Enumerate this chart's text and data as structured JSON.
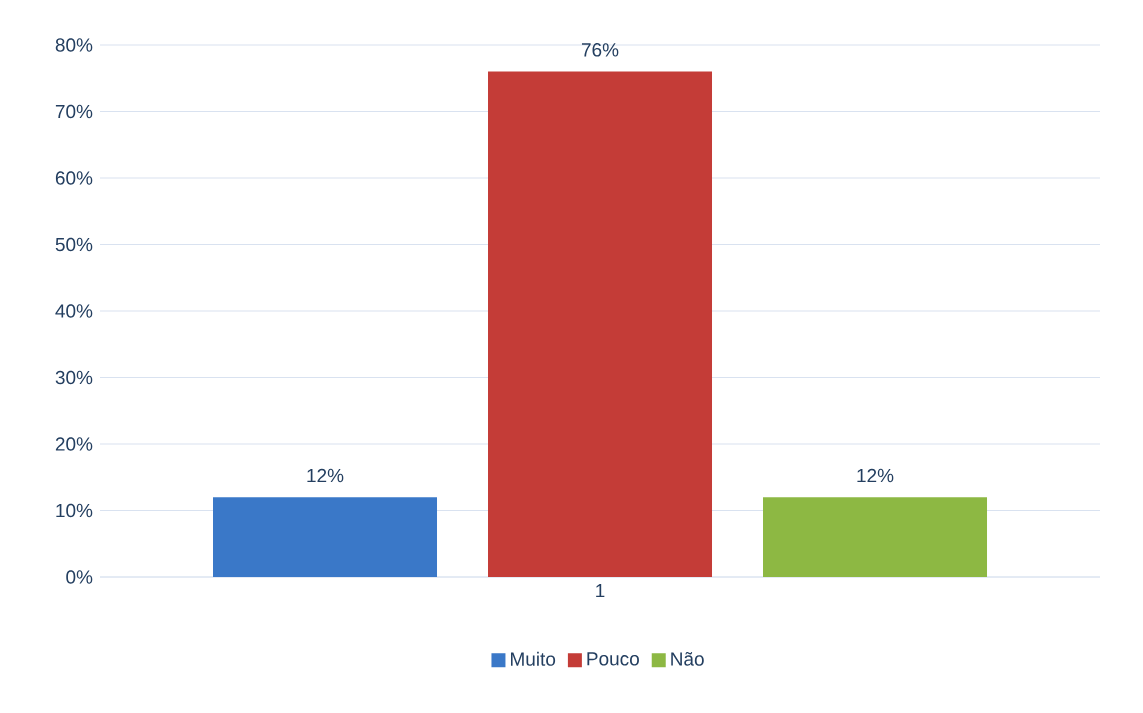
{
  "chart_data": {
    "type": "bar",
    "categories": [
      "1"
    ],
    "series": [
      {
        "name": "Muito",
        "color": "#3a78c8",
        "values": [
          12
        ],
        "value_labels": [
          "12%"
        ]
      },
      {
        "name": "Pouco",
        "color": "#c43c37",
        "values": [
          76
        ],
        "value_labels": [
          "76%"
        ]
      },
      {
        "name": "Não",
        "color": "#8db843",
        "values": [
          12
        ],
        "value_labels": [
          "12%"
        ]
      }
    ],
    "ylim": [
      0,
      80
    ],
    "yticks": [
      {
        "value": 0,
        "label": "0%"
      },
      {
        "value": 10,
        "label": "10%"
      },
      {
        "value": 20,
        "label": "20%"
      },
      {
        "value": 30,
        "label": "30%"
      },
      {
        "value": 40,
        "label": "40%"
      },
      {
        "value": 50,
        "label": "50%"
      },
      {
        "value": 60,
        "label": "60%"
      },
      {
        "value": 70,
        "label": "70%"
      },
      {
        "value": 80,
        "label": "80%"
      }
    ],
    "grid": "y",
    "legend": "bottom"
  }
}
